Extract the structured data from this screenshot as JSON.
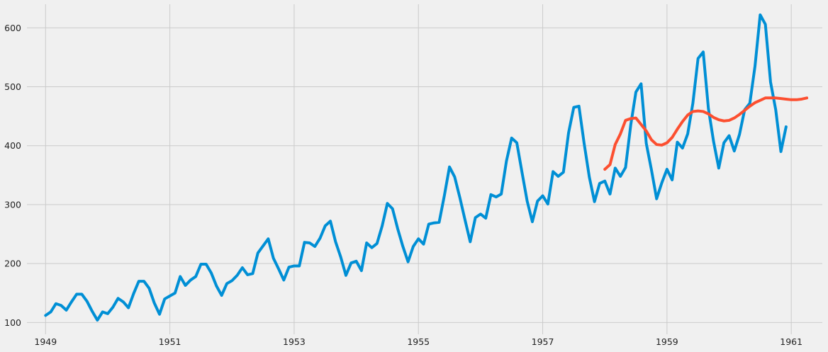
{
  "chart_data": {
    "type": "line",
    "title": "",
    "xlabel": "",
    "ylabel": "",
    "xlim": [
      1948.7,
      1961.5
    ],
    "ylim": [
      80,
      640
    ],
    "x_ticks": [
      1949,
      1951,
      1953,
      1955,
      1957,
      1959,
      1961
    ],
    "x_tick_labels": [
      "1949",
      "1951",
      "1953",
      "1955",
      "1957",
      "1959",
      "1961"
    ],
    "y_ticks": [
      100,
      200,
      300,
      400,
      500,
      600
    ],
    "y_tick_labels": [
      "100",
      "200",
      "300",
      "400",
      "500",
      "600"
    ],
    "grid": true,
    "legend": "none",
    "series": [
      {
        "color": "#008fd5",
        "x_start": 1949,
        "x_step_months": 1,
        "values": [
          112,
          118,
          132,
          129,
          121,
          135,
          148,
          148,
          136,
          119,
          104,
          118,
          115,
          126,
          141,
          135,
          125,
          149,
          170,
          170,
          158,
          133,
          114,
          140,
          145,
          150,
          178,
          163,
          172,
          178,
          199,
          199,
          184,
          162,
          146,
          166,
          171,
          180,
          193,
          181,
          183,
          218,
          230,
          242,
          209,
          191,
          172,
          194,
          196,
          196,
          236,
          235,
          229,
          243,
          264,
          272,
          237,
          211,
          180,
          201,
          204,
          188,
          235,
          227,
          234,
          264,
          302,
          293,
          259,
          229,
          203,
          229,
          242,
          233,
          267,
          269,
          270,
          315,
          364,
          347,
          312,
          274,
          237,
          278,
          284,
          277,
          317,
          313,
          318,
          374,
          413,
          405,
          355,
          306,
          271,
          306,
          315,
          301,
          356,
          348,
          355,
          422,
          465,
          467,
          404,
          347,
          305,
          336,
          340,
          318,
          362,
          348,
          363,
          435,
          491,
          505,
          404,
          359,
          310,
          337,
          360,
          342,
          406,
          396,
          420,
          472,
          548,
          559,
          463,
          407,
          362,
          405,
          417,
          391,
          419,
          461,
          472,
          535,
          622,
          606,
          508,
          461,
          390,
          432
        ]
      },
      {
        "color": "#fc4f30",
        "x_start": 1958,
        "x_step_months": 1,
        "values": [
          360,
          368,
          402,
          420,
          443,
          446,
          447,
          436,
          425,
          410,
          402,
          401,
          405,
          414,
          428,
          441,
          452,
          458,
          459,
          458,
          454,
          448,
          444,
          442,
          443,
          447,
          453,
          460,
          467,
          473,
          477,
          481,
          481,
          481,
          480,
          479,
          478,
          478,
          479,
          481
        ]
      }
    ]
  }
}
